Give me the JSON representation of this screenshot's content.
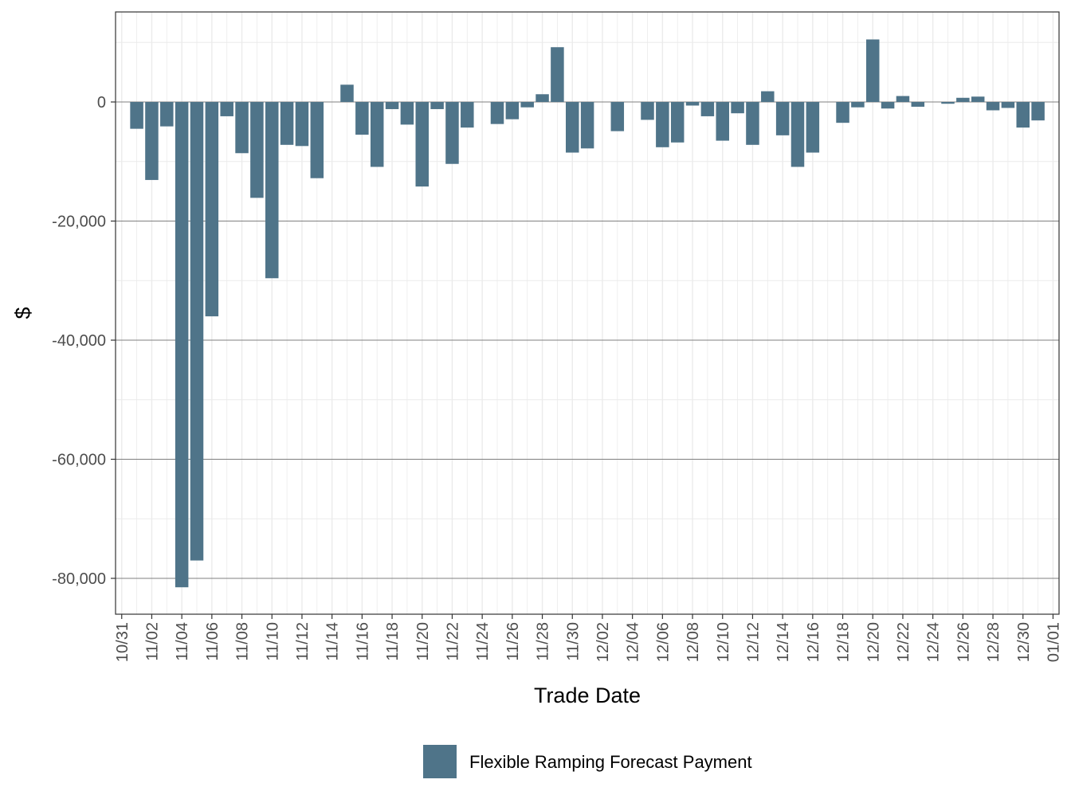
{
  "chart_data": {
    "type": "bar",
    "xlabel": "Trade Date",
    "ylabel": "$",
    "ylim": [
      -86000,
      15000
    ],
    "yticks": [
      0,
      -20000,
      -40000,
      -60000,
      -80000
    ],
    "ytick_labels": [
      "0",
      "-20,000",
      "-40,000",
      "-60,000",
      "-80,000"
    ],
    "xtick_labels": [
      "10/31",
      "11/02",
      "11/04",
      "11/06",
      "11/08",
      "11/10",
      "11/12",
      "11/14",
      "11/16",
      "11/18",
      "11/20",
      "11/22",
      "11/24",
      "11/26",
      "11/28",
      "11/30",
      "12/02",
      "12/04",
      "12/06",
      "12/08",
      "12/10",
      "12/12",
      "12/14",
      "12/16",
      "12/18",
      "12/20",
      "12/22",
      "12/24",
      "12/26",
      "12/28",
      "12/30",
      "01/01"
    ],
    "grid": true,
    "legend_position": "bottom",
    "colors": {
      "bar": "#4f7489",
      "major_grid": "#7f7f7f",
      "minor_grid": "#ebebeb",
      "panel_border": "#333333"
    },
    "categories": [
      "11/01",
      "11/02",
      "11/03",
      "11/04",
      "11/05",
      "11/06",
      "11/07",
      "11/08",
      "11/09",
      "11/10",
      "11/11",
      "11/12",
      "11/13",
      "11/14",
      "11/15",
      "11/16",
      "11/17",
      "11/18",
      "11/19",
      "11/20",
      "11/21",
      "11/22",
      "11/23",
      "11/24",
      "11/25",
      "11/26",
      "11/27",
      "11/28",
      "11/29",
      "11/30",
      "12/01",
      "12/02",
      "12/03",
      "12/04",
      "12/05",
      "12/06",
      "12/07",
      "12/08",
      "12/09",
      "12/10",
      "12/11",
      "12/12",
      "12/13",
      "12/14",
      "12/15",
      "12/16",
      "12/17",
      "12/18",
      "12/19",
      "12/20",
      "12/21",
      "12/22",
      "12/23",
      "12/24",
      "12/25",
      "12/26",
      "12/27",
      "12/28",
      "12/29",
      "12/30",
      "12/31"
    ],
    "series": [
      {
        "name": "Flexible Ramping Forecast Payment",
        "values": [
          -4500,
          -13100,
          -4100,
          -81500,
          -77000,
          -36000,
          -2400,
          -8600,
          -16100,
          -29600,
          -7200,
          -7400,
          -12800,
          0,
          2900,
          -5500,
          -10900,
          -1200,
          -3800,
          -14200,
          -1200,
          -10400,
          -4300,
          0,
          -3700,
          -2900,
          -900,
          1300,
          9200,
          -8500,
          -7800,
          0,
          -4900,
          0,
          -3000,
          -7600,
          -6800,
          -600,
          -2400,
          -6500,
          -1900,
          -7200,
          1800,
          -5600,
          -10900,
          -8500,
          0,
          -3500,
          -900,
          10500,
          -1100,
          1000,
          -800,
          0,
          -300,
          700,
          900,
          -1400,
          -1000,
          -4300,
          -3100
        ]
      }
    ]
  }
}
